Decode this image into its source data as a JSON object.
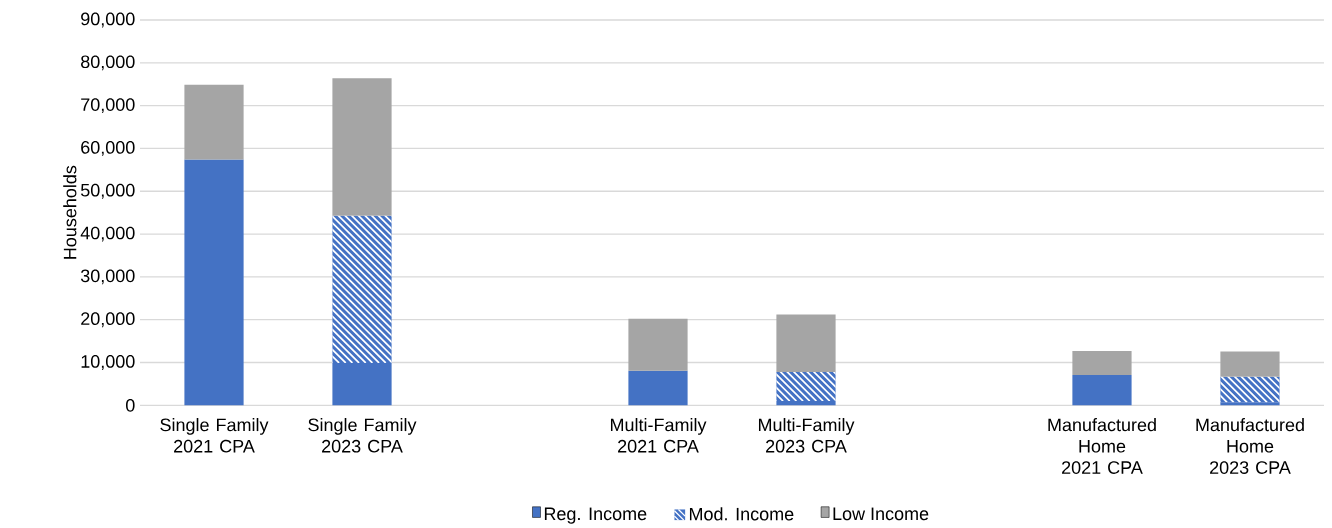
{
  "chart_data": {
    "type": "bar",
    "stacked": true,
    "ylabel": "Households",
    "categories": [
      "Single Family 2021 CPA",
      "Single Family 2023 CPA",
      null,
      "Multi-Family 2021 CPA",
      "Multi-Family 2023 CPA",
      null,
      "Manufactured Home 2021 CPA",
      "Manufactured Home 2023 CPA"
    ],
    "series": [
      {
        "name": "Reg. Income",
        "color": "#4472c4",
        "values": [
          57400,
          9900,
          null,
          8100,
          1000,
          null,
          7100,
          700
        ]
      },
      {
        "name": "Mod. Income",
        "color": "#4472c4",
        "values": [
          0,
          34400,
          null,
          0,
          6800,
          null,
          0,
          6000
        ]
      },
      {
        "name": "Low Income",
        "color": "#a5a5a5",
        "values": [
          17500,
          32100,
          null,
          12100,
          13400,
          null,
          5600,
          5900
        ]
      }
    ],
    "ylim": [
      0,
      90000
    ],
    "yticks": [
      0,
      {
        "value": 10000,
        "label": "10,000"
      },
      {
        "value": 20000,
        "label": "20,000"
      },
      {
        "value": 30000,
        "label": "30,000"
      },
      {
        "value": 40000,
        "label": "40,000"
      },
      {
        "value": 50000,
        "label": "50,000"
      },
      {
        "value": 60000,
        "label": "60,000"
      },
      {
        "value": 70000,
        "label": "70,000"
      },
      {
        "value": 80000,
        "label": "80,000"
      },
      {
        "value": 90000,
        "label": "90,000"
      }
    ],
    "grid": "y",
    "legend": "bottom"
  }
}
